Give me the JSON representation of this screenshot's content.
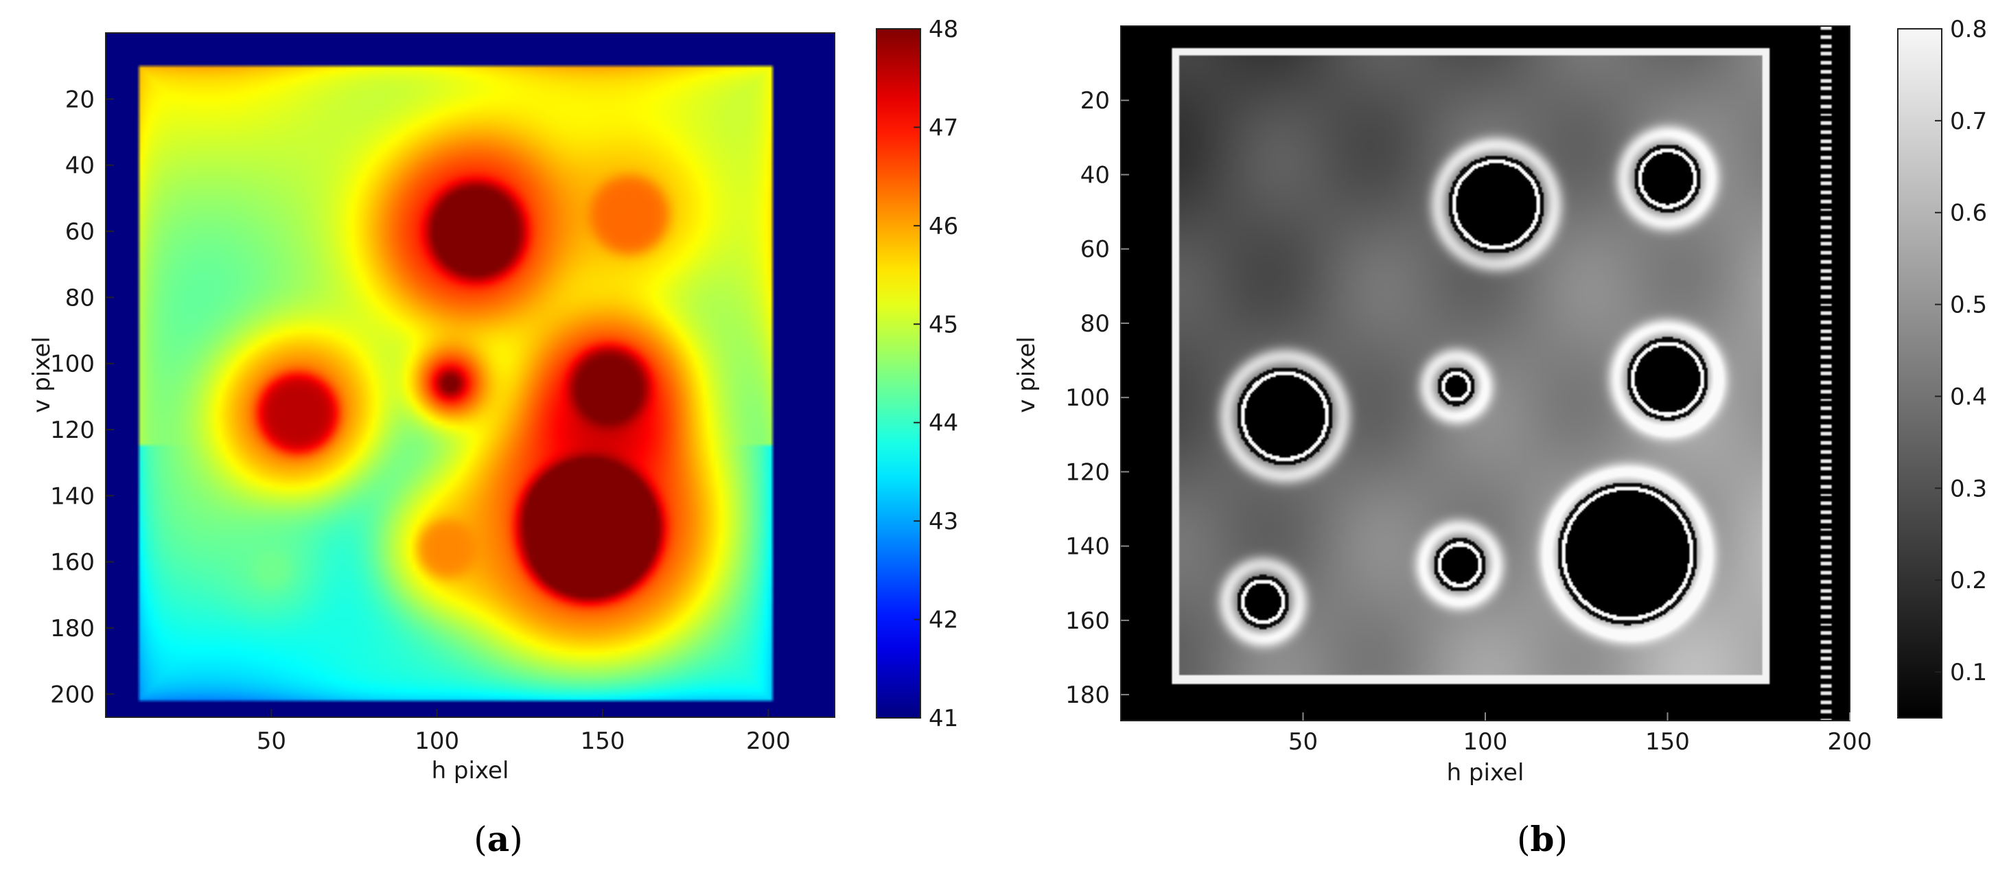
{
  "chart_data": [
    {
      "type": "heatmap",
      "panel_label": "a",
      "xlabel": "h pixel",
      "ylabel": "v pixel",
      "xticks": [
        50,
        100,
        150,
        200
      ],
      "yticks": [
        20,
        40,
        60,
        80,
        100,
        120,
        140,
        160,
        180,
        200
      ],
      "xlim": [
        0,
        220
      ],
      "ylim": [
        0,
        207
      ],
      "colormap": "jet",
      "colorbar": {
        "min": 41,
        "max": 48,
        "ticks": [
          41,
          42,
          43,
          44,
          45,
          46,
          47,
          48
        ]
      },
      "background_value": 41,
      "plate": {
        "x0": 10,
        "x1": 201,
        "y0": 10,
        "y1": 202
      },
      "base_gradient": {
        "top_value": 45.2,
        "bottom_value": 43.6
      },
      "blobs": [
        {
          "x": 112,
          "y": 60,
          "r": 15,
          "value": 48.2
        },
        {
          "x": 158,
          "y": 55,
          "r": 12,
          "value": 46.4
        },
        {
          "x": 58,
          "y": 115,
          "r": 12,
          "value": 47.6
        },
        {
          "x": 104,
          "y": 106,
          "r": 4,
          "value": 48.2
        },
        {
          "x": 152,
          "y": 107,
          "r": 12,
          "value": 48.0
        },
        {
          "x": 146,
          "y": 150,
          "r": 22,
          "value": 48.4
        },
        {
          "x": 103,
          "y": 156,
          "r": 9,
          "value": 46.2
        },
        {
          "x": 50,
          "y": 162,
          "r": 6,
          "value": 44.4
        }
      ]
    },
    {
      "type": "heatmap",
      "panel_label": "b",
      "xlabel": "h pixel",
      "ylabel": "v pixel",
      "xticks": [
        50,
        100,
        150,
        200
      ],
      "yticks": [
        20,
        40,
        60,
        80,
        100,
        120,
        140,
        160,
        180
      ],
      "xlim": [
        0,
        200
      ],
      "ylim": [
        0,
        187
      ],
      "colormap": "gray",
      "colorbar": {
        "min": 0.05,
        "max": 0.8,
        "ticks": [
          0.1,
          0.2,
          0.3,
          0.4,
          0.5,
          0.6,
          0.7,
          0.8
        ]
      },
      "background_value": 0.05,
      "plate": {
        "x0": 15,
        "x1": 177,
        "y0": 7,
        "y1": 176
      },
      "holes": [
        {
          "x": 103,
          "y": 48,
          "r": 11
        },
        {
          "x": 150,
          "y": 41,
          "r": 7
        },
        {
          "x": 45,
          "y": 105,
          "r": 11
        },
        {
          "x": 92,
          "y": 97,
          "r": 3
        },
        {
          "x": 150,
          "y": 95,
          "r": 9
        },
        {
          "x": 139,
          "y": 142,
          "r": 17
        },
        {
          "x": 93,
          "y": 145,
          "r": 5
        },
        {
          "x": 39,
          "y": 155,
          "r": 5
        }
      ]
    }
  ]
}
